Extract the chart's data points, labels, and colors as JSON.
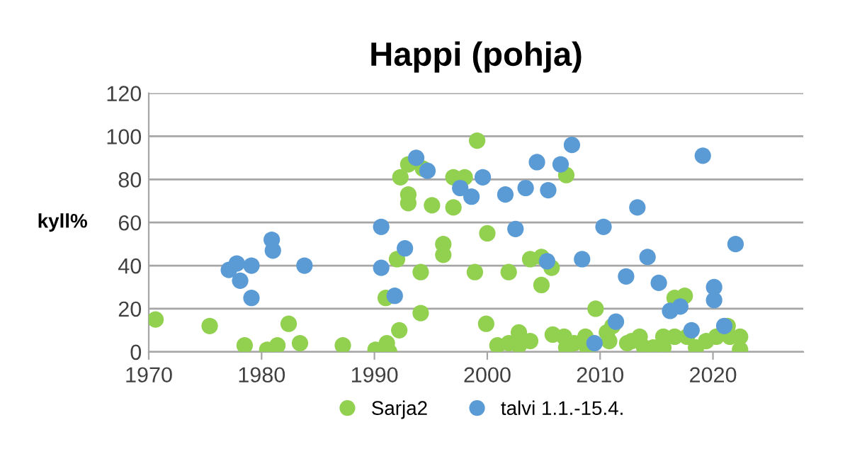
{
  "chart_data": {
    "type": "scatter",
    "title": "Happi (pohja)",
    "ylabel": "kyll%",
    "xlim": [
      1970,
      2028
    ],
    "xticks": [
      1970,
      1980,
      1990,
      2000,
      2010,
      2020
    ],
    "ylim": [
      0,
      120
    ],
    "yticks": [
      0,
      20,
      40,
      60,
      80,
      100,
      120
    ],
    "grid": "y",
    "legend": "bottom",
    "marker": "circle",
    "series": [
      {
        "name": "Sarja2",
        "color": "#92d050",
        "x": [
          1970.6,
          1975.4,
          1978.5,
          1980.5,
          1981.4,
          1982.4,
          1983.4,
          1987.2,
          1990.1,
          1991.1,
          1991.3,
          1991.0,
          1992.2,
          1992.0,
          1992.3,
          1993.0,
          1993.0,
          1993.0,
          1994.1,
          1994.1,
          1994.3,
          1995.1,
          1996.1,
          1996.1,
          1997.0,
          1997.0,
          1998.0,
          1998.9,
          1999.1,
          2000.0,
          1999.9,
          2000.9,
          2001.9,
          2001.9,
          2002.8,
          2002.8,
          2003.8,
          2003.8,
          2004.8,
          2004.8,
          2005.7,
          2005.8,
          2006.8,
          2007.0,
          2007.0,
          2007.7,
          2008.7,
          2008.9,
          2009.6,
          2010.6,
          2010.8,
          2011.1,
          2012.4,
          2012.8,
          2013.5,
          2013.9,
          2014.7,
          2015.6,
          2015.6,
          2016.6,
          2016.6,
          2017.5,
          2017.7,
          2018.5,
          2019.4,
          2020.3,
          2021.3,
          2021.5,
          2022.4,
          2022.4
        ],
        "values": [
          15,
          12,
          3,
          1,
          3,
          13,
          4,
          3,
          1,
          4,
          0,
          25,
          10,
          43,
          81,
          87,
          73,
          69,
          37,
          18,
          85,
          68,
          50,
          45,
          81,
          67,
          81,
          37,
          98,
          55,
          13,
          3,
          37,
          4,
          9,
          3,
          5,
          43,
          44,
          31,
          39,
          8,
          7,
          82,
          2,
          4,
          7,
          1,
          20,
          9,
          5,
          12,
          4,
          5,
          7,
          2,
          2,
          7,
          2,
          7,
          25,
          26,
          7,
          2,
          5,
          7,
          12,
          7,
          7,
          1
        ]
      },
      {
        "name": "talvi 1.1.-15.4.",
        "color": "#5b9bd5",
        "x": [
          1977.1,
          1977.8,
          1978.1,
          1979.1,
          1979.1,
          1980.9,
          1981.0,
          1983.8,
          1990.6,
          1990.6,
          1991.8,
          1992.7,
          1993.7,
          1994.7,
          1997.6,
          1998.6,
          1999.6,
          2001.6,
          2002.5,
          2003.4,
          2004.4,
          2005.4,
          2005.3,
          2006.5,
          2007.5,
          2008.4,
          2009.5,
          2010.3,
          2011.4,
          2012.3,
          2013.3,
          2014.2,
          2015.2,
          2016.2,
          2017.1,
          2018.1,
          2019.1,
          2020.1,
          2020.1,
          2021.0,
          2022.0
        ],
        "values": [
          38,
          41,
          33,
          40,
          25,
          52,
          47,
          40,
          58,
          39,
          26,
          48,
          90,
          84,
          76,
          72,
          81,
          73,
          57,
          76,
          88,
          75,
          42,
          87,
          96,
          43,
          4,
          58,
          14,
          35,
          67,
          44,
          32,
          19,
          21,
          10,
          91,
          30,
          24,
          12,
          50
        ]
      }
    ]
  }
}
